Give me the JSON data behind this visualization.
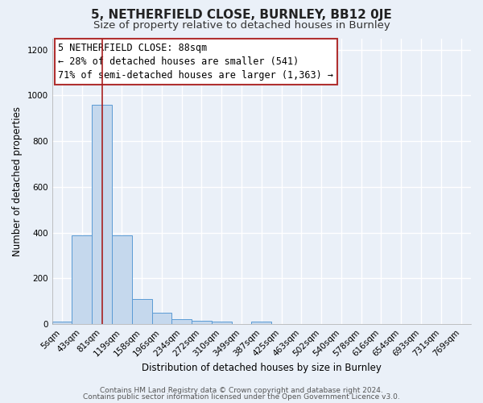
{
  "title": "5, NETHERFIELD CLOSE, BURNLEY, BB12 0JE",
  "subtitle": "Size of property relative to detached houses in Burnley",
  "xlabel": "Distribution of detached houses by size in Burnley",
  "ylabel": "Number of detached properties",
  "bar_labels": [
    "5sqm",
    "43sqm",
    "81sqm",
    "119sqm",
    "158sqm",
    "196sqm",
    "234sqm",
    "272sqm",
    "310sqm",
    "349sqm",
    "387sqm",
    "425sqm",
    "463sqm",
    "502sqm",
    "540sqm",
    "578sqm",
    "616sqm",
    "654sqm",
    "693sqm",
    "731sqm",
    "769sqm"
  ],
  "bar_values": [
    10,
    390,
    960,
    390,
    110,
    50,
    22,
    15,
    10,
    0,
    10,
    0,
    0,
    0,
    0,
    0,
    0,
    0,
    0,
    0,
    0
  ],
  "bar_color": "#c5d8ed",
  "bar_edge_color": "#5b9bd5",
  "background_color": "#eaf0f8",
  "grid_color": "#ffffff",
  "vline_x": 2,
  "vline_color": "#a82020",
  "ylim": [
    0,
    1250
  ],
  "yticks": [
    0,
    200,
    400,
    600,
    800,
    1000,
    1200
  ],
  "annotation_line1": "5 NETHERFIELD CLOSE: 88sqm",
  "annotation_line2": "← 28% of detached houses are smaller (541)",
  "annotation_line3": "71% of semi-detached houses are larger (1,363) →",
  "footer_line1": "Contains HM Land Registry data © Crown copyright and database right 2024.",
  "footer_line2": "Contains public sector information licensed under the Open Government Licence v3.0.",
  "title_fontsize": 11,
  "subtitle_fontsize": 9.5,
  "axis_label_fontsize": 8.5,
  "tick_fontsize": 7.5,
  "annotation_fontsize": 8.5,
  "footer_fontsize": 6.5
}
